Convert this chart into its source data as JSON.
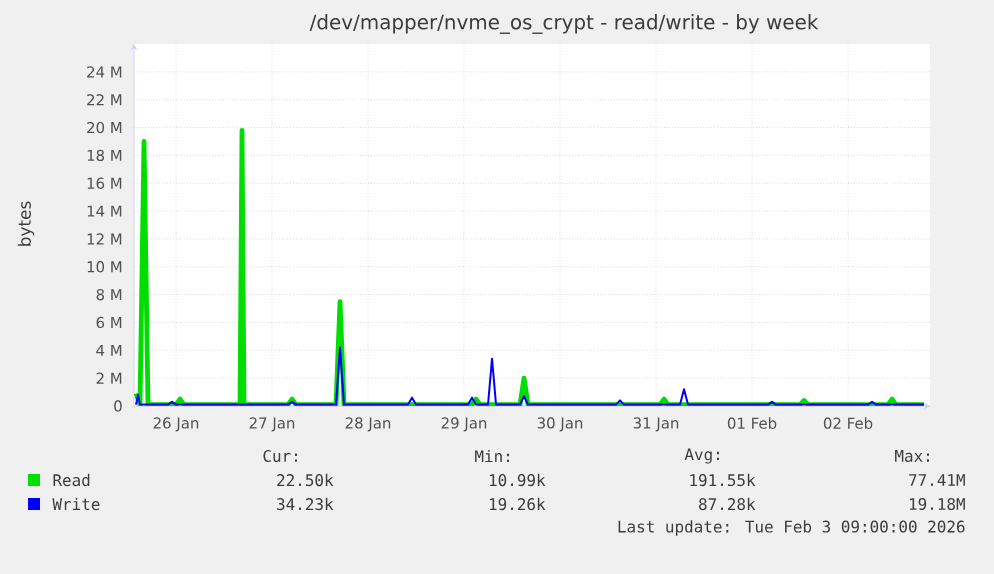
{
  "chart_data": {
    "type": "line",
    "title": "/dev/mapper/nvme_os_crypt - read/write - by week",
    "ylabel": "bytes",
    "xlim": [
      "2026-01-26T01:30",
      "2026-02-03T08:30"
    ],
    "xticks": [
      {
        "value": "2026-01-26T12:00",
        "label": "26 Jan"
      },
      {
        "value": "2026-01-27T12:00",
        "label": "27 Jan"
      },
      {
        "value": "2026-01-28T12:00",
        "label": "28 Jan"
      },
      {
        "value": "2026-01-29T12:00",
        "label": "29 Jan"
      },
      {
        "value": "2026-01-30T12:00",
        "label": "30 Jan"
      },
      {
        "value": "2026-01-31T12:00",
        "label": "31 Jan"
      },
      {
        "value": "2026-02-01T12:00",
        "label": "01 Feb"
      },
      {
        "value": "2026-02-02T12:00",
        "label": "02 Feb"
      }
    ],
    "ylim": [
      0,
      26000000
    ],
    "yticks": [
      {
        "value": 0,
        "label": "0"
      },
      {
        "value": 2000000,
        "label": "2 M"
      },
      {
        "value": 4000000,
        "label": "4 M"
      },
      {
        "value": 6000000,
        "label": "6 M"
      },
      {
        "value": 8000000,
        "label": "8 M"
      },
      {
        "value": 10000000,
        "label": "10 M"
      },
      {
        "value": 12000000,
        "label": "12 M"
      },
      {
        "value": 14000000,
        "label": "14 M"
      },
      {
        "value": 16000000,
        "label": "16 M"
      },
      {
        "value": 18000000,
        "label": "18 M"
      },
      {
        "value": 20000000,
        "label": "20 M"
      },
      {
        "value": 22000000,
        "label": "22 M"
      },
      {
        "value": 24000000,
        "label": "24 M"
      }
    ],
    "grid": true,
    "legend": "bottom",
    "marker": "none",
    "line_style": "solid",
    "series": [
      {
        "name": "Read",
        "color": "#00dd00",
        "x": [
          "2026-01-26T02:00",
          "2026-01-26T03:00",
          "2026-01-26T04:00",
          "2026-01-26T05:00",
          "2026-01-26T12:00",
          "2026-01-26T13:00",
          "2026-01-26T14:00",
          "2026-01-27T04:00",
          "2026-01-27T04:30",
          "2026-01-27T05:00",
          "2026-01-27T16:00",
          "2026-01-27T17:00",
          "2026-01-27T18:00",
          "2026-01-28T04:00",
          "2026-01-28T05:00",
          "2026-01-28T06:00",
          "2026-01-28T12:00",
          "2026-01-29T08:00",
          "2026-01-29T14:00",
          "2026-01-29T15:00",
          "2026-01-29T16:00",
          "2026-01-30T02:00",
          "2026-01-30T03:00",
          "2026-01-30T04:00",
          "2026-01-31T00:00",
          "2026-01-31T13:00",
          "2026-01-31T14:00",
          "2026-01-31T15:00",
          "2026-02-01T16:00",
          "2026-02-02T00:00",
          "2026-02-02T01:00",
          "2026-02-02T02:00",
          "2026-02-02T22:00",
          "2026-02-02T23:00",
          "2026-02-03T00:00",
          "2026-02-03T07:00"
        ],
        "values": [
          900000,
          100000,
          19000000,
          100000,
          100000,
          500000,
          100000,
          100000,
          19800000,
          100000,
          100000,
          500000,
          100000,
          100000,
          7500000,
          100000,
          100000,
          100000,
          100000,
          500000,
          100000,
          100000,
          2000000,
          100000,
          100000,
          100000,
          500000,
          100000,
          100000,
          100000,
          400000,
          100000,
          100000,
          500000,
          100000,
          100000
        ]
      },
      {
        "name": "Write",
        "color": "#0000ff",
        "x": [
          "2026-01-26T02:00",
          "2026-01-26T02:30",
          "2026-01-26T03:00",
          "2026-01-26T10:00",
          "2026-01-26T11:00",
          "2026-01-26T12:00",
          "2026-01-27T16:00",
          "2026-01-27T17:00",
          "2026-01-27T18:00",
          "2026-01-28T04:00",
          "2026-01-28T05:00",
          "2026-01-28T06:00",
          "2026-01-28T22:00",
          "2026-01-28T23:00",
          "2026-01-29T00:00",
          "2026-01-29T13:00",
          "2026-01-29T14:00",
          "2026-01-29T15:00",
          "2026-01-29T18:00",
          "2026-01-29T19:00",
          "2026-01-29T20:00",
          "2026-01-30T02:00",
          "2026-01-30T03:00",
          "2026-01-30T04:00",
          "2026-01-31T02:00",
          "2026-01-31T03:00",
          "2026-01-31T04:00",
          "2026-01-31T18:00",
          "2026-01-31T19:00",
          "2026-01-31T20:00",
          "2026-02-01T16:00",
          "2026-02-01T17:00",
          "2026-02-01T18:00",
          "2026-02-02T17:00",
          "2026-02-02T18:00",
          "2026-02-02T19:00",
          "2026-02-03T07:00"
        ],
        "values": [
          100000,
          800000,
          100000,
          100000,
          300000,
          100000,
          100000,
          300000,
          100000,
          100000,
          4200000,
          100000,
          100000,
          600000,
          100000,
          100000,
          600000,
          100000,
          100000,
          3400000,
          100000,
          100000,
          700000,
          100000,
          100000,
          400000,
          100000,
          100000,
          1200000,
          100000,
          100000,
          300000,
          100000,
          100000,
          300000,
          100000,
          100000
        ]
      }
    ],
    "annotations": [
      "Cur:",
      "Min:",
      "Avg:",
      "Max:",
      "22.50k",
      "10.99k",
      "191.55k",
      "77.41M",
      "34.23k",
      "19.26k",
      "87.28k",
      "19.18M",
      "Last update: Tue Feb  3 09:00:00 2026"
    ]
  }
}
